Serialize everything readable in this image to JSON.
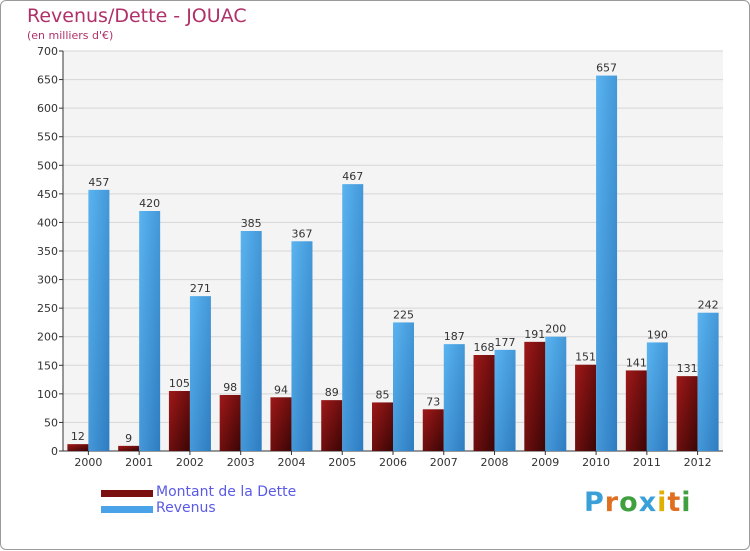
{
  "chart_data": {
    "type": "bar",
    "title": "Revenus/Dette - JOUAC",
    "subtitle": "(en milliers d'€)",
    "categories": [
      "2000",
      "2001",
      "2002",
      "2003",
      "2004",
      "2005",
      "2006",
      "2007",
      "2008",
      "2009",
      "2010",
      "2011",
      "2012"
    ],
    "series": [
      {
        "name": "Montant de la Dette",
        "color": "#7a1010",
        "values": [
          12,
          9,
          105,
          98,
          94,
          89,
          85,
          73,
          168,
          191,
          151,
          141,
          131
        ]
      },
      {
        "name": "Revenus",
        "color": "#4aa3e8",
        "values": [
          457,
          420,
          271,
          385,
          367,
          467,
          225,
          187,
          177,
          200,
          657,
          190,
          242
        ]
      }
    ],
    "ylim": [
      0,
      700
    ],
    "yticks": [
      "0",
      "50",
      "100",
      "150",
      "200",
      "250",
      "300",
      "350",
      "400",
      "450",
      "500",
      "550",
      "600",
      "650",
      "700"
    ],
    "grid": true,
    "legend_position": "bottom-left"
  },
  "logo": {
    "letters": [
      "P",
      "r",
      "o",
      "x",
      "i",
      "t",
      "i"
    ],
    "colors": [
      "#3aa0d8",
      "#e07020",
      "#40a040",
      "#3aa0d8",
      "#e0b000",
      "#e07020",
      "#40a040"
    ]
  }
}
